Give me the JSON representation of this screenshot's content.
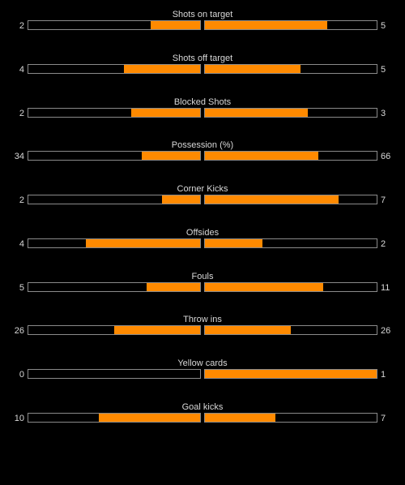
{
  "stats": [
    {
      "label": "Shots on target",
      "home": "2",
      "away": "5",
      "home_fill": 0.2857,
      "away_fill": 0.7143
    },
    {
      "label": "Shots off target",
      "home": "4",
      "away": "5",
      "home_fill": 0.4444,
      "away_fill": 0.5556
    },
    {
      "label": "Blocked Shots",
      "home": "2",
      "away": "3",
      "home_fill": 0.4,
      "away_fill": 0.6
    },
    {
      "label": "Possession (%)",
      "home": "34",
      "away": "66",
      "home_fill": 0.34,
      "away_fill": 0.66
    },
    {
      "label": "Corner Kicks",
      "home": "2",
      "away": "7",
      "home_fill": 0.2222,
      "away_fill": 0.7778
    },
    {
      "label": "Offsides",
      "home": "4",
      "away": "2",
      "home_fill": 0.6667,
      "away_fill": 0.3333
    },
    {
      "label": "Fouls",
      "home": "5",
      "away": "11",
      "home_fill": 0.3125,
      "away_fill": 0.6875
    },
    {
      "label": "Throw ins",
      "home": "26",
      "away": "26",
      "home_fill": 0.5,
      "away_fill": 0.5
    },
    {
      "label": "Yellow cards",
      "home": "0",
      "away": "1",
      "home_fill": 0.0,
      "away_fill": 1.0
    },
    {
      "label": "Goal kicks",
      "home": "10",
      "away": "7",
      "home_fill": 0.5882,
      "away_fill": 0.4118
    }
  ],
  "colors": {
    "fill": "#ff8a00",
    "bar_border": "#8a8a8a",
    "text": "#d8d8d8",
    "background": "#000000"
  }
}
